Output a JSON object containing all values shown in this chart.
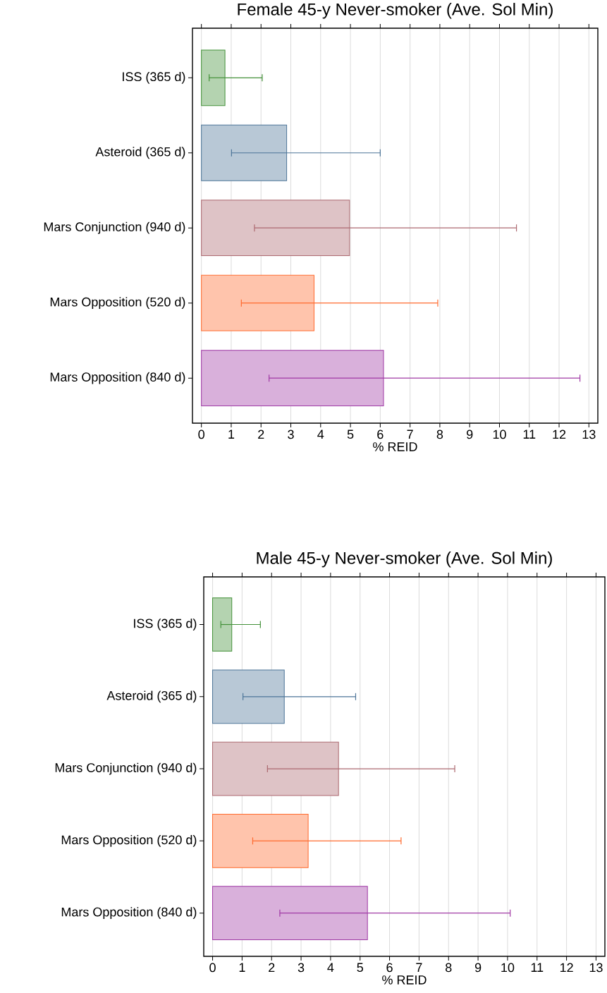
{
  "chart_data": [
    {
      "type": "bar",
      "orientation": "horizontal",
      "title": "Female 45-y Never-smoker (Ave. Sol Min)",
      "xlabel": "% REID",
      "categories": [
        "ISS (365 d)",
        "Asteroid (365 d)",
        "Mars Conjunction (940 d)",
        "Mars Opposition (520 d)",
        "Mars Opposition (840 d)"
      ],
      "values": [
        0.79,
        2.86,
        4.97,
        3.78,
        6.11
      ],
      "errors": [
        [
          0.26,
          2.04
        ],
        [
          1.01,
          6.0
        ],
        [
          1.78,
          10.57
        ],
        [
          1.34,
          7.93
        ],
        [
          2.27,
          12.7
        ]
      ],
      "colors": [
        "#b4d3b0",
        "#b8c8d6",
        "#dec3c6",
        "#ffc4ac",
        "#d9b0db"
      ],
      "xlim": [
        -0.3,
        13.3
      ],
      "xticks": [
        0,
        1,
        2,
        3,
        4,
        5,
        6,
        7,
        8,
        9,
        10,
        11,
        12,
        13
      ],
      "grid": "x"
    },
    {
      "type": "bar",
      "orientation": "horizontal",
      "title": "Male 45-y Never-smoker (Ave. Sol Min)",
      "xlabel": "% REID",
      "categories": [
        "ISS (365 d)",
        "Asteroid (365 d)",
        "Mars Conjunction (940 d)",
        "Mars Opposition (520 d)",
        "Mars Opposition (840 d)"
      ],
      "values": [
        0.65,
        2.43,
        4.27,
        3.24,
        5.25
      ],
      "errors": [
        [
          0.28,
          1.62
        ],
        [
          1.03,
          4.85
        ],
        [
          1.86,
          8.21
        ],
        [
          1.36,
          6.39
        ],
        [
          2.28,
          10.09
        ]
      ],
      "colors": [
        "#b4d3b0",
        "#b8c8d6",
        "#dec3c6",
        "#ffc4ac",
        "#d9b0db"
      ],
      "xlim": [
        -0.3,
        13.3
      ],
      "xticks": [
        0,
        1,
        2,
        3,
        4,
        5,
        6,
        7,
        8,
        9,
        10,
        11,
        12,
        13
      ],
      "grid": "x"
    }
  ]
}
